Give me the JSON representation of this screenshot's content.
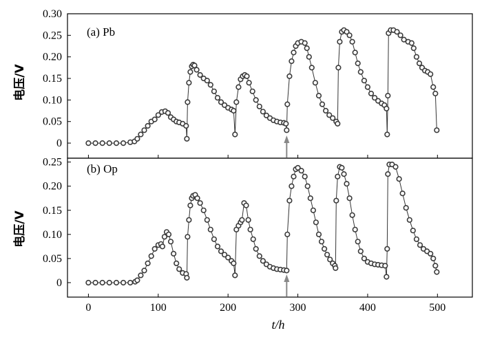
{
  "chart_data": [
    {
      "type": "scatter",
      "panel_label": "(a) Pb",
      "ylabel": "电压/V",
      "xlabel": "",
      "xlim": [
        -30,
        550
      ],
      "ylim": [
        -0.035,
        0.3
      ],
      "xticks": [
        0,
        100,
        200,
        300,
        400,
        500
      ],
      "xtick_labels": [
        "",
        "",
        "",
        "",
        "",
        ""
      ],
      "yticks": [
        0,
        0.05,
        0.1,
        0.15,
        0.2,
        0.25,
        0.3
      ],
      "ytick_labels": [
        "0",
        "0.05",
        "0.10",
        "0.15",
        "0.20",
        "0.25",
        "0.30"
      ],
      "grid": false,
      "annotation_arrow_x": 284,
      "series": [
        {
          "values": [
            [
              0,
              0
            ],
            [
              10,
              0
            ],
            [
              20,
              0
            ],
            [
              30,
              0
            ],
            [
              40,
              0
            ],
            [
              50,
              0
            ],
            [
              60,
              0.002
            ],
            [
              66,
              0.004
            ],
            [
              70,
              0.01
            ],
            [
              75,
              0.02
            ],
            [
              80,
              0.03
            ],
            [
              85,
              0.04
            ],
            [
              90,
              0.05
            ],
            [
              95,
              0.055
            ],
            [
              100,
              0.065
            ],
            [
              105,
              0.072
            ],
            [
              110,
              0.074
            ],
            [
              114,
              0.07
            ],
            [
              118,
              0.06
            ],
            [
              122,
              0.055
            ],
            [
              126,
              0.05
            ],
            [
              130,
              0.048
            ],
            [
              135,
              0.045
            ],
            [
              140,
              0.04
            ],
            [
              141,
              0.01
            ],
            [
              142,
              0.095
            ],
            [
              144,
              0.14
            ],
            [
              146,
              0.165
            ],
            [
              148,
              0.178
            ],
            [
              150,
              0.182
            ],
            [
              152,
              0.18
            ],
            [
              155,
              0.17
            ],
            [
              160,
              0.158
            ],
            [
              165,
              0.15
            ],
            [
              170,
              0.145
            ],
            [
              175,
              0.135
            ],
            [
              180,
              0.12
            ],
            [
              185,
              0.105
            ],
            [
              190,
              0.095
            ],
            [
              195,
              0.088
            ],
            [
              200,
              0.082
            ],
            [
              205,
              0.078
            ],
            [
              208,
              0.075
            ],
            [
              210,
              0.02
            ],
            [
              212,
              0.095
            ],
            [
              215,
              0.13
            ],
            [
              218,
              0.148
            ],
            [
              221,
              0.155
            ],
            [
              224,
              0.158
            ],
            [
              227,
              0.155
            ],
            [
              230,
              0.14
            ],
            [
              235,
              0.12
            ],
            [
              240,
              0.1
            ],
            [
              245,
              0.085
            ],
            [
              250,
              0.073
            ],
            [
              255,
              0.064
            ],
            [
              260,
              0.058
            ],
            [
              265,
              0.053
            ],
            [
              270,
              0.05
            ],
            [
              275,
              0.048
            ],
            [
              280,
              0.047
            ],
            [
              283,
              0.045
            ],
            [
              284,
              0.03
            ],
            [
              285,
              0.09
            ],
            [
              288,
              0.155
            ],
            [
              291,
              0.19
            ],
            [
              294,
              0.21
            ],
            [
              297,
              0.225
            ],
            [
              300,
              0.232
            ],
            [
              305,
              0.235
            ],
            [
              310,
              0.232
            ],
            [
              313,
              0.22
            ],
            [
              316,
              0.2
            ],
            [
              320,
              0.175
            ],
            [
              325,
              0.14
            ],
            [
              330,
              0.11
            ],
            [
              335,
              0.09
            ],
            [
              340,
              0.075
            ],
            [
              345,
              0.065
            ],
            [
              350,
              0.058
            ],
            [
              355,
              0.05
            ],
            [
              357,
              0.045
            ],
            [
              358,
              0.175
            ],
            [
              360,
              0.235
            ],
            [
              363,
              0.258
            ],
            [
              366,
              0.262
            ],
            [
              370,
              0.258
            ],
            [
              374,
              0.25
            ],
            [
              378,
              0.235
            ],
            [
              382,
              0.21
            ],
            [
              386,
              0.185
            ],
            [
              390,
              0.165
            ],
            [
              395,
              0.145
            ],
            [
              400,
              0.13
            ],
            [
              405,
              0.115
            ],
            [
              410,
              0.105
            ],
            [
              415,
              0.098
            ],
            [
              420,
              0.092
            ],
            [
              424,
              0.088
            ],
            [
              427,
              0.08
            ],
            [
              428,
              0.02
            ],
            [
              429,
              0.11
            ],
            [
              430,
              0.255
            ],
            [
              433,
              0.262
            ],
            [
              437,
              0.262
            ],
            [
              442,
              0.258
            ],
            [
              447,
              0.25
            ],
            [
              452,
              0.24
            ],
            [
              458,
              0.235
            ],
            [
              463,
              0.232
            ],
            [
              466,
              0.22
            ],
            [
              470,
              0.2
            ],
            [
              474,
              0.185
            ],
            [
              478,
              0.175
            ],
            [
              482,
              0.168
            ],
            [
              486,
              0.165
            ],
            [
              490,
              0.16
            ],
            [
              494,
              0.13
            ],
            [
              497,
              0.115
            ],
            [
              499,
              0.03
            ]
          ]
        }
      ]
    },
    {
      "type": "scatter",
      "panel_label": "(b) Op",
      "ylabel": "电压/V",
      "xlabel": "t/h",
      "xlim": [
        -30,
        550
      ],
      "ylim": [
        -0.03,
        0.258
      ],
      "xticks": [
        0,
        100,
        200,
        300,
        400,
        500
      ],
      "xtick_labels": [
        "0",
        "100",
        "200",
        "300",
        "400",
        "500"
      ],
      "yticks": [
        0,
        0.05,
        0.1,
        0.15,
        0.2,
        0.25
      ],
      "ytick_labels": [
        "0",
        "0.05",
        "0.10",
        "0.15",
        "0.20",
        "0.25"
      ],
      "grid": false,
      "annotation_arrow_x": 284,
      "series": [
        {
          "values": [
            [
              0,
              0
            ],
            [
              10,
              0
            ],
            [
              20,
              0
            ],
            [
              30,
              0
            ],
            [
              40,
              0
            ],
            [
              50,
              0
            ],
            [
              60,
              0
            ],
            [
              67,
              0.002
            ],
            [
              70,
              0.005
            ],
            [
              75,
              0.015
            ],
            [
              80,
              0.025
            ],
            [
              85,
              0.04
            ],
            [
              90,
              0.055
            ],
            [
              95,
              0.07
            ],
            [
              100,
              0.078
            ],
            [
              104,
              0.08
            ],
            [
              106,
              0.075
            ],
            [
              109,
              0.095
            ],
            [
              112,
              0.105
            ],
            [
              115,
              0.1
            ],
            [
              118,
              0.085
            ],
            [
              122,
              0.06
            ],
            [
              126,
              0.04
            ],
            [
              130,
              0.028
            ],
            [
              135,
              0.02
            ],
            [
              140,
              0.018
            ],
            [
              141,
              0.01
            ],
            [
              142,
              0.095
            ],
            [
              144,
              0.13
            ],
            [
              146,
              0.16
            ],
            [
              148,
              0.175
            ],
            [
              150,
              0.18
            ],
            [
              153,
              0.182
            ],
            [
              156,
              0.175
            ],
            [
              160,
              0.165
            ],
            [
              165,
              0.15
            ],
            [
              170,
              0.13
            ],
            [
              175,
              0.11
            ],
            [
              180,
              0.09
            ],
            [
              185,
              0.075
            ],
            [
              190,
              0.065
            ],
            [
              195,
              0.058
            ],
            [
              200,
              0.052
            ],
            [
              205,
              0.045
            ],
            [
              208,
              0.04
            ],
            [
              210,
              0.015
            ],
            [
              212,
              0.11
            ],
            [
              215,
              0.118
            ],
            [
              218,
              0.125
            ],
            [
              220,
              0.13
            ],
            [
              223,
              0.165
            ],
            [
              226,
              0.16
            ],
            [
              229,
              0.13
            ],
            [
              232,
              0.11
            ],
            [
              236,
              0.09
            ],
            [
              240,
              0.07
            ],
            [
              245,
              0.055
            ],
            [
              250,
              0.045
            ],
            [
              255,
              0.038
            ],
            [
              260,
              0.033
            ],
            [
              265,
              0.03
            ],
            [
              270,
              0.028
            ],
            [
              275,
              0.027
            ],
            [
              280,
              0.026
            ],
            [
              284,
              0.025
            ],
            [
              285,
              0.1
            ],
            [
              288,
              0.17
            ],
            [
              291,
              0.2
            ],
            [
              294,
              0.22
            ],
            [
              297,
              0.235
            ],
            [
              300,
              0.238
            ],
            [
              305,
              0.232
            ],
            [
              310,
              0.22
            ],
            [
              314,
              0.2
            ],
            [
              318,
              0.175
            ],
            [
              322,
              0.15
            ],
            [
              326,
              0.125
            ],
            [
              330,
              0.1
            ],
            [
              334,
              0.085
            ],
            [
              338,
              0.07
            ],
            [
              342,
              0.058
            ],
            [
              346,
              0.048
            ],
            [
              350,
              0.04
            ],
            [
              353,
              0.035
            ],
            [
              354,
              0.03
            ],
            [
              355,
              0.17
            ],
            [
              357,
              0.22
            ],
            [
              360,
              0.24
            ],
            [
              363,
              0.238
            ],
            [
              366,
              0.225
            ],
            [
              370,
              0.205
            ],
            [
              374,
              0.175
            ],
            [
              378,
              0.14
            ],
            [
              382,
              0.11
            ],
            [
              386,
              0.085
            ],
            [
              390,
              0.065
            ],
            [
              395,
              0.05
            ],
            [
              400,
              0.043
            ],
            [
              405,
              0.04
            ],
            [
              410,
              0.038
            ],
            [
              415,
              0.037
            ],
            [
              420,
              0.036
            ],
            [
              425,
              0.035
            ],
            [
              427,
              0.012
            ],
            [
              428,
              0.07
            ],
            [
              429,
              0.225
            ],
            [
              431,
              0.245
            ],
            [
              435,
              0.245
            ],
            [
              440,
              0.24
            ],
            [
              445,
              0.215
            ],
            [
              450,
              0.185
            ],
            [
              455,
              0.155
            ],
            [
              460,
              0.13
            ],
            [
              465,
              0.108
            ],
            [
              470,
              0.09
            ],
            [
              475,
              0.078
            ],
            [
              480,
              0.07
            ],
            [
              485,
              0.065
            ],
            [
              490,
              0.06
            ],
            [
              494,
              0.05
            ],
            [
              497,
              0.035
            ],
            [
              499,
              0.022
            ]
          ]
        }
      ]
    }
  ]
}
